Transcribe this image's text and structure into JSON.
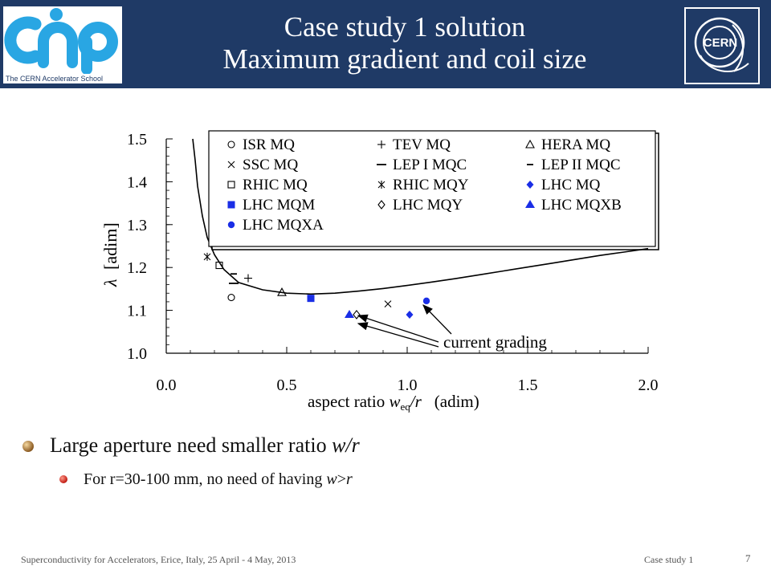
{
  "header": {
    "title_line1": "Case study 1 solution",
    "title_line2": "Maximum gradient and coil size",
    "cas_logo_caption": "The CERN Accelerator School",
    "cern_logo_text": "CERN"
  },
  "chart_data": {
    "type": "scatter",
    "ylabel_symbol": "λ",
    "ylabel_unit": "[adim]",
    "xlabel_prefix": "aspect ratio ",
    "xlabel_var": "w",
    "xlabel_sub": "eq",
    "xlabel_suffix": "/r",
    "xlabel_unit": "(adim)",
    "xlim": [
      0.0,
      2.0
    ],
    "ylim": [
      1.0,
      1.5
    ],
    "xticks": [
      "0.0",
      "0.5",
      "1.0",
      "1.5",
      "2.0"
    ],
    "yticks": [
      "1.0",
      "1.1",
      "1.2",
      "1.3",
      "1.4",
      "1.5"
    ],
    "grid": false,
    "legend_position": "top-right",
    "annotation": "current grading",
    "curve": {
      "x": [
        0.11,
        0.12,
        0.13,
        0.15,
        0.17,
        0.2,
        0.24,
        0.3,
        0.4,
        0.5,
        0.6,
        0.7,
        0.8,
        0.9,
        1.0,
        1.1,
        1.2,
        1.3,
        1.4,
        1.5,
        1.6,
        1.7,
        1.8,
        1.9,
        2.0
      ],
      "y": [
        1.5,
        1.45,
        1.39,
        1.32,
        1.27,
        1.23,
        1.195,
        1.165,
        1.148,
        1.14,
        1.138,
        1.14,
        1.145,
        1.151,
        1.158,
        1.166,
        1.174,
        1.183,
        1.192,
        1.201,
        1.21,
        1.219,
        1.228,
        1.236,
        1.244
      ]
    },
    "series": [
      {
        "name": "ISR MQ",
        "marker": "open-circle",
        "x": [
          0.27
        ],
        "y": [
          1.13
        ]
      },
      {
        "name": "TEV MQ",
        "marker": "plus",
        "x": [
          0.34
        ],
        "y": [
          1.175
        ]
      },
      {
        "name": "HERA MQ",
        "marker": "open-triangle",
        "x": [
          0.48
        ],
        "y": [
          1.142
        ]
      },
      {
        "name": "SSC MQ",
        "marker": "cross",
        "x": [
          0.92
        ],
        "y": [
          1.115
        ]
      },
      {
        "name": "LEP I MQC",
        "marker": "dash",
        "x": [
          0.28
        ],
        "y": [
          1.163
        ]
      },
      {
        "name": "LEP II MQC",
        "marker": "small-dash",
        "x": [
          0.28
        ],
        "y": [
          1.185
        ]
      },
      {
        "name": "RHIC MQ",
        "marker": "open-square",
        "x": [
          0.22
        ],
        "y": [
          1.205
        ]
      },
      {
        "name": "RHIC MQY",
        "marker": "asterisk",
        "x": [
          0.17
        ],
        "y": [
          1.225
        ]
      },
      {
        "name": "LHC MQ",
        "marker": "filled-diamond",
        "x": [
          1.01
        ],
        "y": [
          1.09
        ]
      },
      {
        "name": "LHC MQM",
        "marker": "filled-square",
        "x": [
          0.6
        ],
        "y": [
          1.128
        ]
      },
      {
        "name": "LHC MQY",
        "marker": "open-diamond",
        "x": [
          0.79
        ],
        "y": [
          1.09
        ]
      },
      {
        "name": "LHC MQXB",
        "marker": "filled-triangle",
        "x": [
          0.76
        ],
        "y": [
          1.09
        ]
      },
      {
        "name": "LHC MQXA",
        "marker": "filled-circle",
        "x": [
          1.08
        ],
        "y": [
          1.122
        ]
      }
    ],
    "colors": {
      "black": "#000000",
      "blue": "#1a2ee6"
    }
  },
  "bullets": {
    "b1_text": "Large aperture need smaller ratio ",
    "b1_var": "w/r",
    "b2_text": "For r=30-100 mm, no need of having ",
    "b2_var1": "w",
    "b2_rel": ">",
    "b2_var2": "r"
  },
  "footer": {
    "left": "Superconductivity for Accelerators, Erice, Italy, 25 April - 4 May, 2013",
    "mid": "Case study 1",
    "page": "7"
  },
  "colors": {
    "header_bg": "#1f3a66",
    "cas_blue": "#29a6e3"
  }
}
